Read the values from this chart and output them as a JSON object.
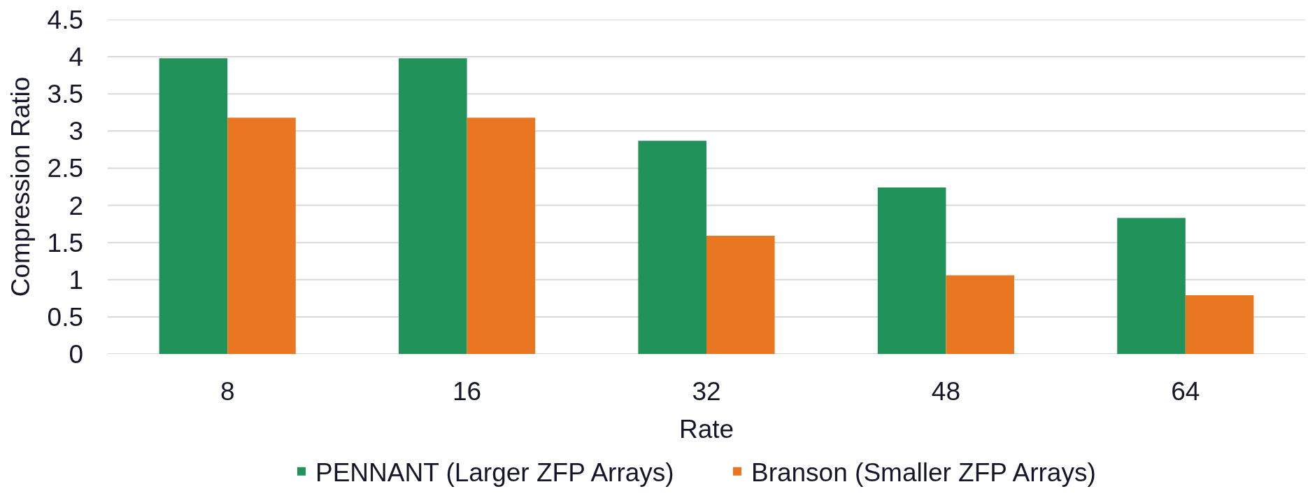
{
  "chart_data": {
    "type": "bar",
    "xlabel": "Rate",
    "ylabel": "Compression Ratio",
    "categories": [
      "8",
      "16",
      "32",
      "48",
      "64"
    ],
    "series": [
      {
        "name": "PENNANT (Larger ZFP Arrays)",
        "color": "#21925a",
        "values": [
          3.98,
          3.98,
          2.87,
          2.24,
          1.83
        ]
      },
      {
        "name": "Branson (Smaller ZFP Arrays)",
        "color": "#e97721",
        "values": [
          3.18,
          3.18,
          1.59,
          1.06,
          0.79
        ]
      }
    ],
    "ylim": [
      0,
      4.5
    ],
    "yticks": [
      0,
      0.5,
      1,
      1.5,
      2,
      2.5,
      3,
      3.5,
      4,
      4.5
    ],
    "grid": "y",
    "legend": "bottom"
  }
}
